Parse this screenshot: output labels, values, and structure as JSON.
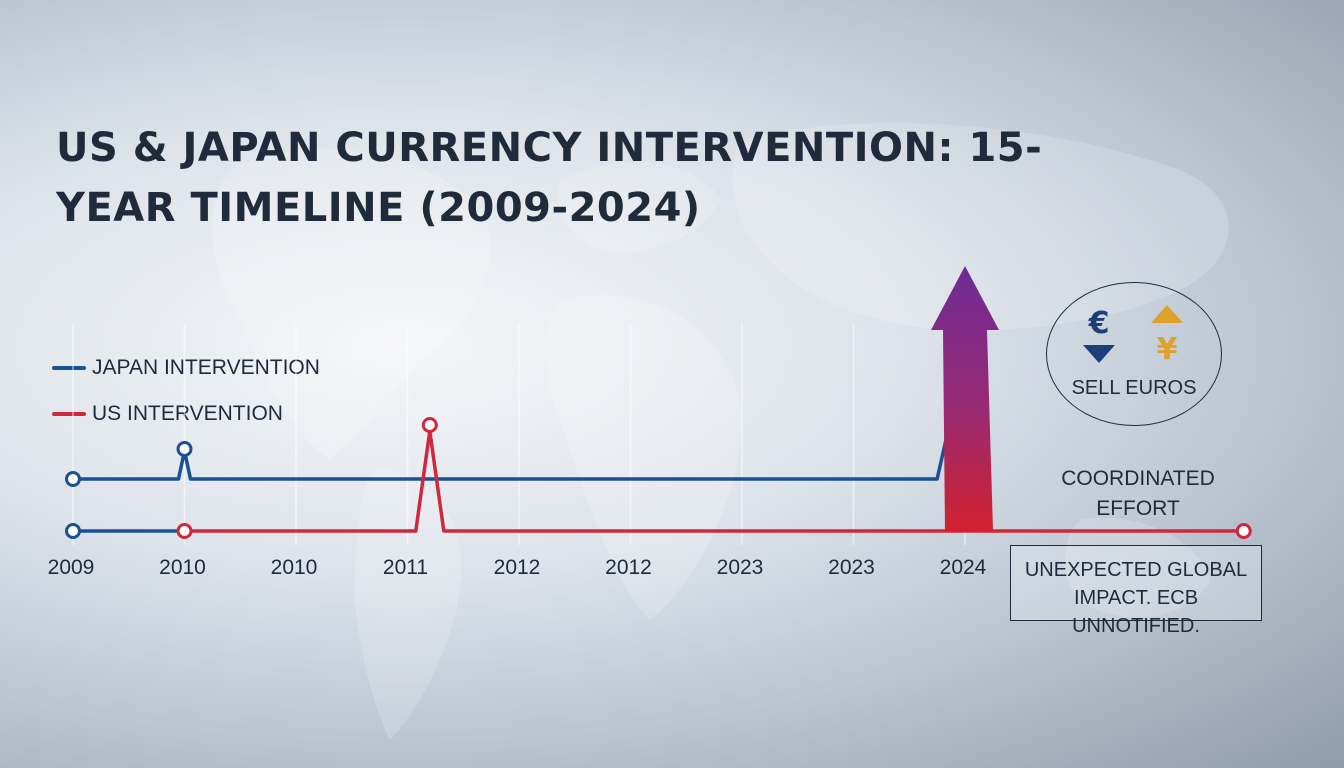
{
  "title": "US & Japan Currency Intervention: 15-Year Timeline (2009-2024)",
  "legend": {
    "japan": "Japan Intervention",
    "us": "US Intervention"
  },
  "chart_data": {
    "type": "line",
    "categories": [
      "2009",
      "2010",
      "2010",
      "2011",
      "2012",
      "2012",
      "2023",
      "2023",
      "2024"
    ],
    "series": [
      {
        "name": "Japan Intervention",
        "color": "#1c4f94",
        "markers": [
          0,
          1
        ],
        "events": [
          {
            "at": 1,
            "size": "small"
          },
          {
            "at": 8,
            "size": "large"
          }
        ]
      },
      {
        "name": "US Intervention",
        "color": "#d0283b",
        "markers": [
          1,
          10.5
        ],
        "events": [
          {
            "at": 3.2,
            "size": "medium"
          }
        ]
      }
    ],
    "grid": true,
    "legend_position": "left"
  },
  "badge": {
    "euro_symbol": "€",
    "yen_symbol": "¥",
    "label": "Sell Euros"
  },
  "coordinated_label": "Coordinated Effort",
  "impact_note": "Unexpected global impact. ECB unnotified.",
  "colors": {
    "title": "#1f2a3a",
    "japan": "#1c4f94",
    "us": "#d0283b",
    "arrow_top": "#6d2b94",
    "arrow_bottom": "#d3202e",
    "yen": "#e0a12a"
  }
}
